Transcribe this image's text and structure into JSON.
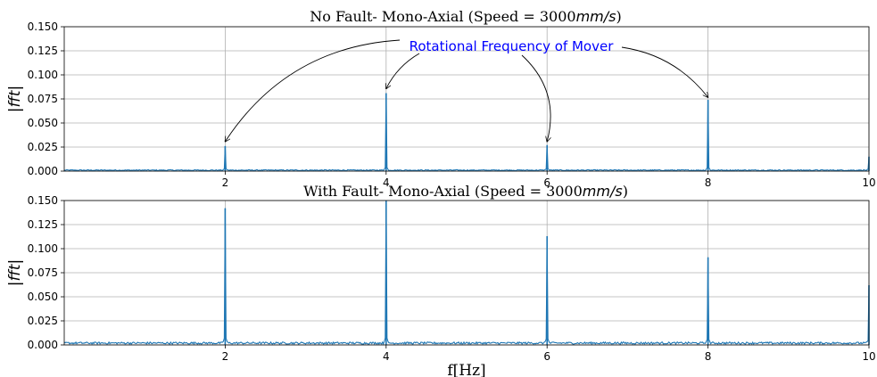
{
  "chart_data": [
    {
      "type": "line",
      "title": "No Fault- Mono-Axial (Speed = 3000",
      "title_unit": "mm/s",
      "title_close": ")",
      "ylabel": "|fft|",
      "xlabel": "",
      "xlim": [
        0,
        10
      ],
      "ylim": [
        0,
        0.15
      ],
      "x_ticks": [
        "2",
        "4",
        "6",
        "8",
        "10"
      ],
      "y_ticks": [
        "0.000",
        "0.025",
        "0.050",
        "0.075",
        "0.100",
        "0.125",
        "0.150"
      ],
      "grid": true,
      "noise_level": 0.0015,
      "peaks": [
        {
          "x": 2,
          "y": 0.026
        },
        {
          "x": 4,
          "y": 0.081
        },
        {
          "x": 6,
          "y": 0.027
        },
        {
          "x": 8,
          "y": 0.074
        },
        {
          "x": 10,
          "y": 0.015
        }
      ],
      "annotation": {
        "text": "Rotational Frequency of Mover",
        "color": "#0000ff",
        "targets": [
          {
            "x": 2,
            "y": 0.027
          },
          {
            "x": 4,
            "y": 0.082
          },
          {
            "x": 6,
            "y": 0.027
          },
          {
            "x": 8,
            "y": 0.073
          }
        ]
      },
      "series_color": "#1f77b4"
    },
    {
      "type": "line",
      "title": "With Fault- Mono-Axial (Speed = 3000",
      "title_unit": "mm/s",
      "title_close": ")",
      "ylabel": "|fft|",
      "xlabel": "f[Hz]",
      "xlim": [
        0,
        10
      ],
      "ylim": [
        0,
        0.15
      ],
      "x_ticks": [
        "2",
        "4",
        "6",
        "8",
        "10"
      ],
      "y_ticks": [
        "0.000",
        "0.025",
        "0.050",
        "0.075",
        "0.100",
        "0.125",
        "0.150"
      ],
      "grid": true,
      "noise_level": 0.003,
      "peaks": [
        {
          "x": 2,
          "y": 0.142
        },
        {
          "x": 4,
          "y": 0.15
        },
        {
          "x": 6,
          "y": 0.113
        },
        {
          "x": 8,
          "y": 0.091
        },
        {
          "x": 10,
          "y": 0.062
        }
      ],
      "series_color": "#1f77b4"
    }
  ]
}
